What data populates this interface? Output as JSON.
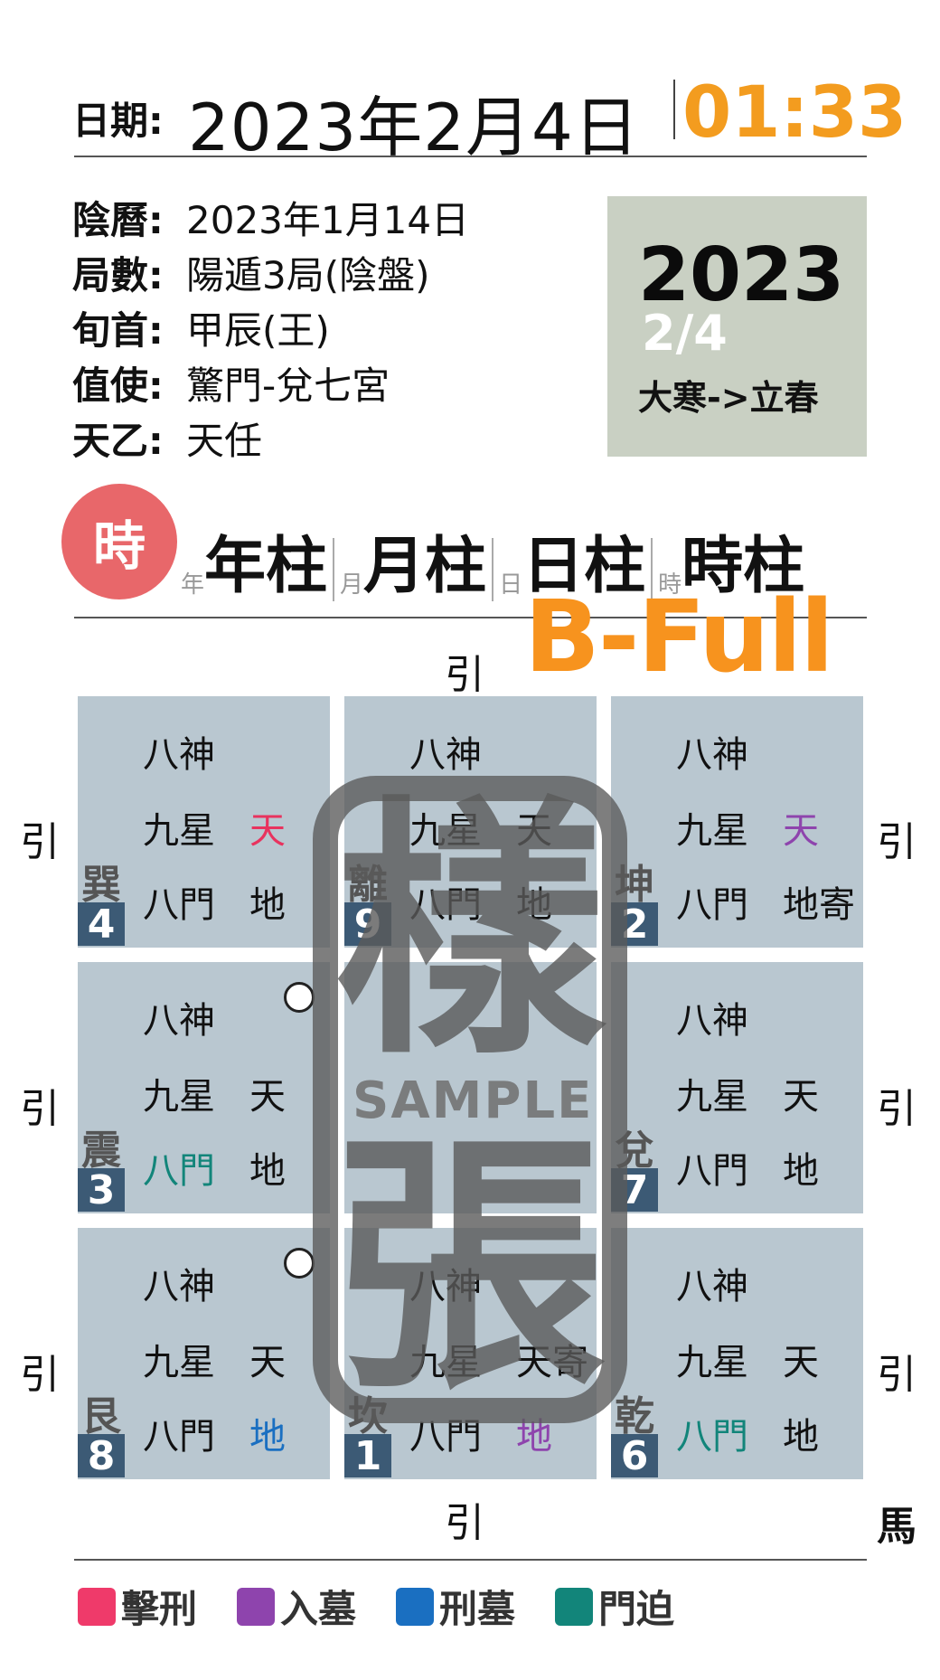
{
  "header": {
    "date_label": "日期:",
    "date_value": "2023年2月4日",
    "time_value": "01:33"
  },
  "info": [
    {
      "label": "陰曆:",
      "value": "2023年1月14日"
    },
    {
      "label": "局數:",
      "value": "陽遁3局(陰盤)"
    },
    {
      "label": "旬首:",
      "value": "甲辰(王)"
    },
    {
      "label": "值使:",
      "value": "驚門-兌七宮"
    },
    {
      "label": "天乙:",
      "value": "天任"
    }
  ],
  "year_box": {
    "year": "2023",
    "date": "2/4",
    "term": "大寒->立春"
  },
  "pillars": {
    "badge": "時",
    "items": [
      {
        "small": "年",
        "big": "年柱"
      },
      {
        "small": "月",
        "big": "月柱"
      },
      {
        "small": "日",
        "big": "日柱"
      },
      {
        "small": "時",
        "big": "時柱"
      }
    ]
  },
  "plan_label": "B-Full",
  "palaces": [
    {
      "trigram": "巽",
      "number": "4",
      "shen": "八神",
      "star": "九星",
      "door": "八門",
      "tian": "天",
      "di": "地",
      "tian_color": "#e8335e",
      "di_color": "#111111",
      "door_color": "#111111"
    },
    {
      "trigram": "離",
      "number": "9",
      "shen": "八神",
      "star": "九星",
      "door": "八門",
      "tian": "天",
      "di": "地",
      "tian_color": "#111111",
      "di_color": "#111111",
      "door_color": "#111111"
    },
    {
      "trigram": "坤",
      "number": "2",
      "shen": "八神",
      "star": "九星",
      "door": "八門",
      "tian": "天",
      "di": "地寄",
      "tian_color": "#8e44ad",
      "di_color": "#111111",
      "door_color": "#111111"
    },
    {
      "trigram": "震",
      "number": "3",
      "shen": "八神",
      "star": "九星",
      "door": "八門",
      "tian": "天",
      "di": "地",
      "tian_color": "#111111",
      "di_color": "#111111",
      "door_color": "#12857a"
    },
    {
      "trigram": "",
      "number": "",
      "shen": "",
      "star": "",
      "door": "",
      "tian": "",
      "di": "",
      "tian_color": "#111111",
      "di_color": "#111111",
      "door_color": "#111111"
    },
    {
      "trigram": "兌",
      "number": "7",
      "shen": "八神",
      "star": "九星",
      "door": "八門",
      "tian": "天",
      "di": "地",
      "tian_color": "#111111",
      "di_color": "#111111",
      "door_color": "#111111"
    },
    {
      "trigram": "艮",
      "number": "8",
      "shen": "八神",
      "star": "九星",
      "door": "八門",
      "tian": "天",
      "di": "地",
      "tian_color": "#111111",
      "di_color": "#1a6fc1",
      "door_color": "#111111"
    },
    {
      "trigram": "坎",
      "number": "1",
      "shen": "八神",
      "star": "九星",
      "door": "八門",
      "tian": "天寄",
      "di": "地",
      "tian_color": "#111111",
      "di_color": "#8e44ad",
      "door_color": "#111111"
    },
    {
      "trigram": "乾",
      "number": "6",
      "shen": "八神",
      "star": "九星",
      "door": "八門",
      "tian": "天",
      "di": "地",
      "tian_color": "#111111",
      "di_color": "#111111",
      "door_color": "#12857a"
    }
  ],
  "side_marks": {
    "top": "引",
    "bottom": "引",
    "horse": "馬",
    "left": [
      "引",
      "引",
      "引"
    ],
    "right": [
      "引",
      "引",
      "引"
    ]
  },
  "watermark": {
    "char1": "樣",
    "char2": "張",
    "sample": "SAMPLE"
  },
  "legend": [
    {
      "label": "擊刑",
      "color": "#ef3a6a"
    },
    {
      "label": "入墓",
      "color": "#8e44ad"
    },
    {
      "label": "刑墓",
      "color": "#1a6fc1"
    },
    {
      "label": "門迫",
      "color": "#12857a"
    }
  ]
}
